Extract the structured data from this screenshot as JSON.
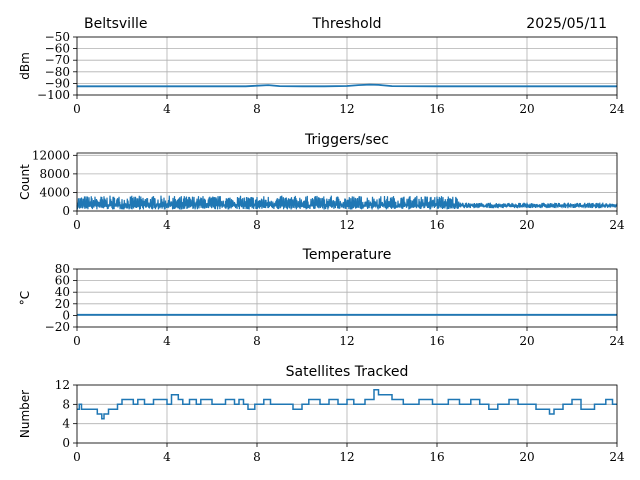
{
  "header": {
    "site": "Beltsville",
    "date": "2025/05/11"
  },
  "chart_data": [
    {
      "type": "line",
      "title": "Threshold",
      "xlabel": "",
      "ylabel": "dBm",
      "xlim": [
        0,
        24
      ],
      "ylim": [
        -100,
        -50
      ],
      "x_ticks": [
        0,
        4,
        8,
        12,
        16,
        20,
        24
      ],
      "y_ticks": [
        -100,
        -90,
        -80,
        -70,
        -60,
        -50
      ],
      "y_tick_labels": [
        "−100",
        "−90",
        "−80",
        "−70",
        "−60",
        "−50"
      ],
      "grid": true,
      "color": "#1f77b4",
      "series": [
        {
          "x": [
            0,
            2,
            4,
            6,
            7.5,
            8,
            8.5,
            9,
            10,
            11,
            12,
            12.5,
            13,
            13.4,
            14,
            16,
            17
          ],
          "values": [
            -92.5,
            -92.5,
            -92.5,
            -92.5,
            -92.5,
            -92.0,
            -91.5,
            -92.3,
            -92.5,
            -92.5,
            -92.2,
            -91.5,
            -91.0,
            -91.3,
            -92.3,
            -92.5,
            -92.5
          ]
        },
        {
          "x": [
            17,
            24
          ],
          "values": [
            -92.5,
            -92.5
          ]
        }
      ]
    },
    {
      "type": "line",
      "title": "Triggers/sec",
      "xlabel": "",
      "ylabel": "Count",
      "xlim": [
        0,
        24
      ],
      "ylim": [
        0,
        12500
      ],
      "x_ticks": [
        0,
        4,
        8,
        12,
        16,
        20,
        24
      ],
      "y_ticks": [
        0,
        4000,
        8000,
        12000
      ],
      "y_tick_labels": [
        "0",
        "4000",
        "8000",
        "12000"
      ],
      "grid": true,
      "color": "#1f77b4",
      "noisy": [
        {
          "x_start": 0,
          "x_end": 17,
          "low": 300,
          "high": 3300,
          "base": 1200
        },
        {
          "x_start": 17,
          "x_end": 24,
          "low": 600,
          "high": 1800,
          "base": 1100
        }
      ]
    },
    {
      "type": "line",
      "title": "Temperature",
      "xlabel": "",
      "ylabel": "°C",
      "xlim": [
        0,
        24
      ],
      "ylim": [
        -20,
        80
      ],
      "x_ticks": [
        0,
        4,
        8,
        12,
        16,
        20,
        24
      ],
      "y_ticks": [
        -20,
        0,
        20,
        40,
        60,
        80
      ],
      "y_tick_labels": [
        "−20",
        "0",
        "20",
        "40",
        "60",
        "80"
      ],
      "grid": true,
      "color": "#1f77b4",
      "series": [
        {
          "x": [
            0,
            24
          ],
          "values": [
            1,
            1
          ]
        }
      ]
    },
    {
      "type": "line",
      "title": "Satellites Tracked",
      "xlabel": "",
      "ylabel": "Number",
      "xlim": [
        0,
        24
      ],
      "ylim": [
        0,
        12
      ],
      "x_ticks": [
        0,
        4,
        8,
        12,
        16,
        20,
        24
      ],
      "y_ticks": [
        0,
        4,
        8,
        12
      ],
      "y_tick_labels": [
        "0",
        "4",
        "8",
        "12"
      ],
      "grid": true,
      "color": "#1f77b4",
      "steps": [
        [
          0,
          7
        ],
        [
          0.1,
          8
        ],
        [
          0.2,
          7
        ],
        [
          0.9,
          6
        ],
        [
          1.1,
          5
        ],
        [
          1.2,
          6
        ],
        [
          1.4,
          7
        ],
        [
          1.8,
          8
        ],
        [
          2.0,
          9
        ],
        [
          2.5,
          8
        ],
        [
          2.7,
          9
        ],
        [
          3.0,
          8
        ],
        [
          3.4,
          9
        ],
        [
          4.0,
          8
        ],
        [
          4.2,
          10
        ],
        [
          4.5,
          9
        ],
        [
          4.7,
          8
        ],
        [
          5.0,
          9
        ],
        [
          5.3,
          8
        ],
        [
          5.5,
          9
        ],
        [
          6.0,
          8
        ],
        [
          6.6,
          9
        ],
        [
          7.0,
          8
        ],
        [
          7.2,
          9
        ],
        [
          7.4,
          8
        ],
        [
          7.6,
          7
        ],
        [
          7.9,
          8
        ],
        [
          8.3,
          9
        ],
        [
          8.6,
          8
        ],
        [
          9.0,
          8
        ],
        [
          9.6,
          7
        ],
        [
          10.0,
          8
        ],
        [
          10.3,
          9
        ],
        [
          10.8,
          8
        ],
        [
          11.2,
          9
        ],
        [
          11.6,
          8
        ],
        [
          12.0,
          9
        ],
        [
          12.3,
          8
        ],
        [
          12.8,
          9
        ],
        [
          13.2,
          11
        ],
        [
          13.4,
          10
        ],
        [
          14.0,
          9
        ],
        [
          14.5,
          8
        ],
        [
          15.2,
          9
        ],
        [
          15.8,
          8
        ],
        [
          16.5,
          9
        ],
        [
          17.0,
          8
        ],
        [
          17.5,
          9
        ],
        [
          17.9,
          8
        ],
        [
          18.3,
          7
        ],
        [
          18.7,
          8
        ],
        [
          19.2,
          9
        ],
        [
          19.6,
          8
        ],
        [
          20.0,
          8
        ],
        [
          20.4,
          7
        ],
        [
          21.0,
          6
        ],
        [
          21.2,
          7
        ],
        [
          21.6,
          8
        ],
        [
          22.0,
          9
        ],
        [
          22.4,
          7
        ],
        [
          23.0,
          8
        ],
        [
          23.5,
          9
        ],
        [
          23.8,
          8
        ],
        [
          24,
          8
        ]
      ]
    }
  ]
}
